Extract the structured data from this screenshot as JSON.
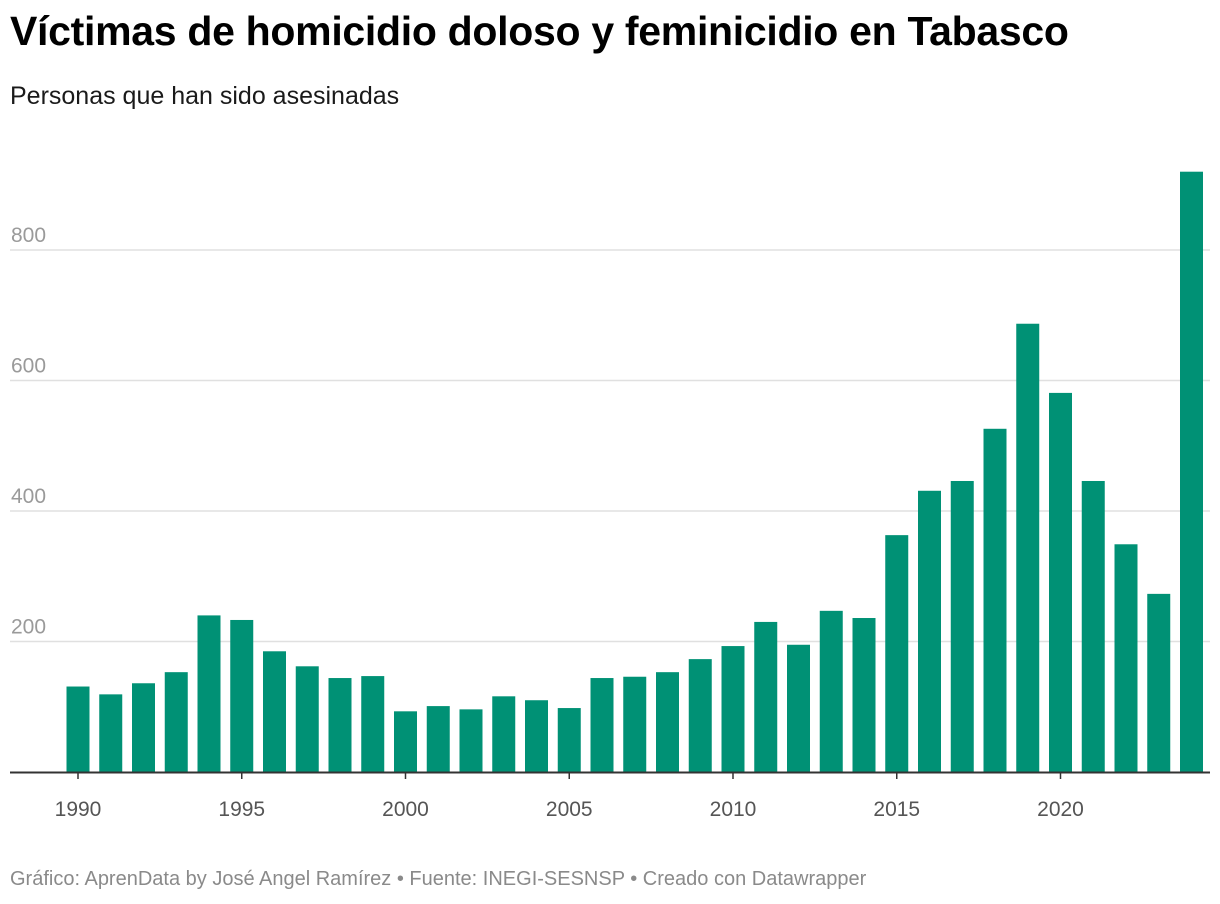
{
  "title": "Víctimas de homicidio doloso y feminicidio en Tabasco",
  "subtitle": "Personas que han sido asesinadas",
  "footer": "Gráfico: AprenData by José Angel Ramírez • Fuente: INEGI-SESNSP • Creado con Datawrapper",
  "colors": {
    "bar": "#009175",
    "grid": "#e0e0e0",
    "axis": "#333333"
  },
  "chart_data": {
    "type": "bar",
    "title": "Víctimas de homicidio doloso y feminicidio en Tabasco",
    "subtitle": "Personas que han sido asesinadas",
    "xlabel": "",
    "ylabel": "",
    "ylim": [
      0,
      920
    ],
    "grid": true,
    "yticks": [
      200,
      400,
      600,
      800
    ],
    "xticks": [
      1990,
      1995,
      2000,
      2005,
      2010,
      2015,
      2020
    ],
    "categories": [
      1990,
      1991,
      1992,
      1993,
      1994,
      1995,
      1996,
      1997,
      1998,
      1999,
      2000,
      2001,
      2002,
      2003,
      2004,
      2005,
      2006,
      2007,
      2008,
      2009,
      2010,
      2011,
      2012,
      2013,
      2014,
      2015,
      2016,
      2017,
      2018,
      2019,
      2020,
      2021,
      2022,
      2023,
      2024
    ],
    "values": [
      131,
      119,
      136,
      153,
      240,
      233,
      185,
      162,
      144,
      147,
      93,
      101,
      96,
      116,
      110,
      98,
      144,
      146,
      153,
      173,
      193,
      230,
      195,
      247,
      236,
      363,
      431,
      446,
      526,
      687,
      581,
      446,
      349,
      273,
      920
    ]
  }
}
